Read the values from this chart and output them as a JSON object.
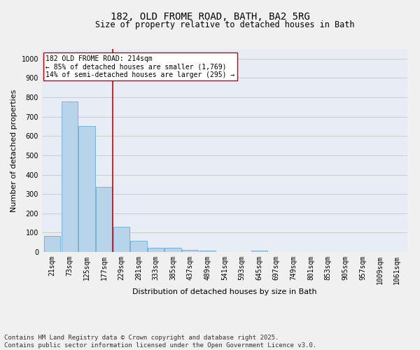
{
  "title1": "182, OLD FROME ROAD, BATH, BA2 5RG",
  "title2": "Size of property relative to detached houses in Bath",
  "xlabel": "Distribution of detached houses by size in Bath",
  "ylabel": "Number of detached properties",
  "categories": [
    "21sqm",
    "73sqm",
    "125sqm",
    "177sqm",
    "229sqm",
    "281sqm",
    "333sqm",
    "385sqm",
    "437sqm",
    "489sqm",
    "541sqm",
    "593sqm",
    "645sqm",
    "697sqm",
    "749sqm",
    "801sqm",
    "853sqm",
    "905sqm",
    "957sqm",
    "1009sqm",
    "1061sqm"
  ],
  "values": [
    85,
    780,
    650,
    335,
    130,
    57,
    22,
    20,
    12,
    8,
    0,
    0,
    8,
    0,
    0,
    0,
    0,
    0,
    0,
    0,
    0
  ],
  "bar_color": "#b8d4ea",
  "bar_edge_color": "#6aaad4",
  "vline_x": 3.5,
  "vline_color": "#cc0000",
  "annotation_text": "182 OLD FROME ROAD: 214sqm\n← 85% of detached houses are smaller (1,769)\n14% of semi-detached houses are larger (295) →",
  "annotation_box_color": "#ffffff",
  "annotation_box_edge": "#cc0000",
  "ylim": [
    0,
    1050
  ],
  "yticks": [
    0,
    100,
    200,
    300,
    400,
    500,
    600,
    700,
    800,
    900,
    1000
  ],
  "grid_color": "#cccccc",
  "bg_color": "#e8edf5",
  "fig_bg_color": "#f0f0f0",
  "footer": "Contains HM Land Registry data © Crown copyright and database right 2025.\nContains public sector information licensed under the Open Government Licence v3.0.",
  "footer_fontsize": 6.5,
  "title1_fontsize": 10,
  "title2_fontsize": 8.5,
  "xlabel_fontsize": 8,
  "ylabel_fontsize": 8,
  "tick_fontsize": 7,
  "ann_fontsize": 7
}
